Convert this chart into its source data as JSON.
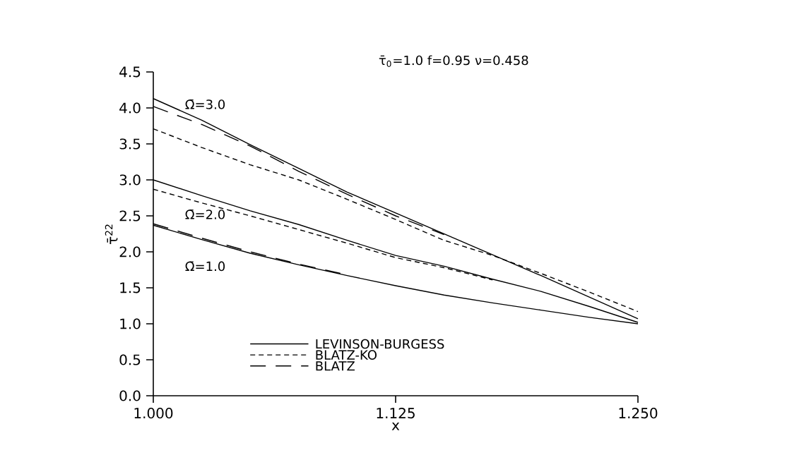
{
  "chart_data": {
    "type": "line",
    "xlabel": "x",
    "ylabel": "τ̄$^{22}$",
    "x": [
      1.0,
      1.025,
      1.05,
      1.075,
      1.1,
      1.125,
      1.15,
      1.175,
      1.2,
      1.225,
      1.25
    ],
    "series": [
      {
        "name": "LEVINSON-BURGESS",
        "color": "#000000",
        "line_style": "solid",
        "values": [
          4.13,
          3.83,
          3.49,
          3.16,
          2.83,
          2.54,
          2.25,
          1.96,
          1.67,
          1.37,
          1.07
        ]
      },
      {
        "name": "BLATZ-KO",
        "color": "#000000",
        "line_style": "dashed",
        "values": [
          3.71,
          3.45,
          3.21,
          3.0,
          2.73,
          2.45,
          2.16,
          1.95,
          1.7,
          1.44,
          1.17
        ]
      },
      {
        "name": "BLATZ",
        "color": "#000000",
        "line_style": "long dashed",
        "values": [
          4.02,
          3.77,
          3.47,
          3.12,
          2.8,
          2.5,
          2.24,
          null,
          null,
          null,
          null
        ]
      },
      {
        "color": "#000000",
        "line_style": "solid",
        "values": [
          3.0,
          2.78,
          2.57,
          2.38,
          2.16,
          1.95,
          1.8,
          1.62,
          1.45,
          1.24,
          1.02
        ]
      },
      {
        "color": "#000000",
        "line_style": "dashed",
        "values": [
          2.87,
          2.68,
          2.5,
          2.31,
          2.12,
          1.92,
          1.78,
          1.61,
          null,
          null,
          null
        ]
      },
      {
        "color": "#000000",
        "line_style": "solid",
        "values": [
          2.37,
          2.17,
          1.98,
          1.82,
          1.67,
          1.53,
          1.4,
          1.29,
          1.19,
          1.09,
          1.0
        ]
      },
      {
        "color": "#000000",
        "line_style": "long dashed",
        "values": [
          2.39,
          2.19,
          2.0,
          1.83,
          1.68,
          null,
          null,
          null,
          null,
          null,
          null
        ]
      }
    ],
    "xlim": [
      1.0,
      1.25
    ],
    "xticks": [
      {
        "value": 1.0,
        "label": "1.000"
      },
      {
        "value": 1.125,
        "label": "1.125"
      },
      {
        "value": 1.25,
        "label": "1.250"
      }
    ],
    "ylim": [
      0,
      4.5
    ],
    "yticks": [
      {
        "value": 0,
        "label": "0.0"
      },
      {
        "value": 0.5,
        "label": "0.5"
      },
      {
        "value": 1,
        "label": "1.0"
      },
      {
        "value": 1.5,
        "label": "1.5"
      },
      {
        "value": 2,
        "label": "2.0"
      },
      {
        "value": 2.5,
        "label": "2.5"
      },
      {
        "value": 3,
        "label": "3.0"
      },
      {
        "value": 3.5,
        "label": "3.5"
      },
      {
        "value": 4,
        "label": "4.0"
      },
      {
        "value": 4.5,
        "label": "4.5"
      }
    ],
    "legend": "bottom",
    "grid": false,
    "annotations": [
      "τ̄$_{0}$=1.0    f=0.95    ν=0.458",
      "Ω̄=3.0",
      "Ω̄=2.0",
      "Ω̄=1.0"
    ]
  }
}
